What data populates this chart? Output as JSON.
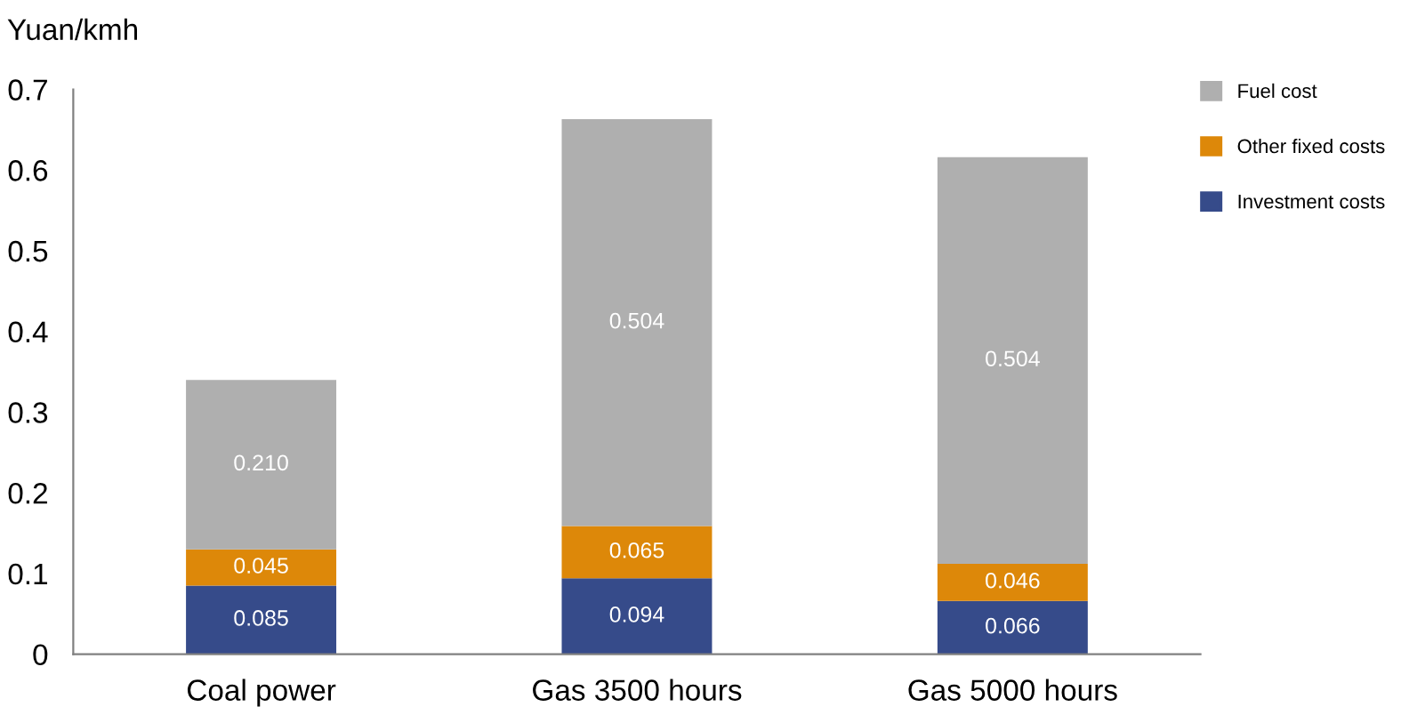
{
  "chart_data": {
    "type": "bar",
    "stacked": true,
    "ylabel": "Yuan/kmh",
    "categories": [
      "Coal power",
      "Gas 3500 hours",
      "Gas 5000 hours"
    ],
    "series": [
      {
        "name": "Investment costs",
        "color": "#364b8a",
        "values": [
          0.085,
          0.094,
          0.066
        ],
        "value_labels": [
          "0.085",
          "0.094",
          "0.066"
        ]
      },
      {
        "name": "Other fixed costs",
        "color": "#dd8809",
        "values": [
          0.045,
          0.065,
          0.046
        ],
        "value_labels": [
          "0.045",
          "0.065",
          "0.046"
        ]
      },
      {
        "name": "Fuel cost",
        "color": "#afafaf",
        "values": [
          0.21,
          0.504,
          0.504
        ],
        "value_labels": [
          "0.210",
          "0.504",
          "0.504"
        ]
      }
    ],
    "ylim": [
      0,
      0.7
    ],
    "yticks": [
      {
        "value": 0,
        "label": "0"
      },
      0.1,
      0.2,
      0.3,
      0.4,
      0.5,
      0.6,
      0.7
    ],
    "grid": false,
    "legend": "right"
  }
}
